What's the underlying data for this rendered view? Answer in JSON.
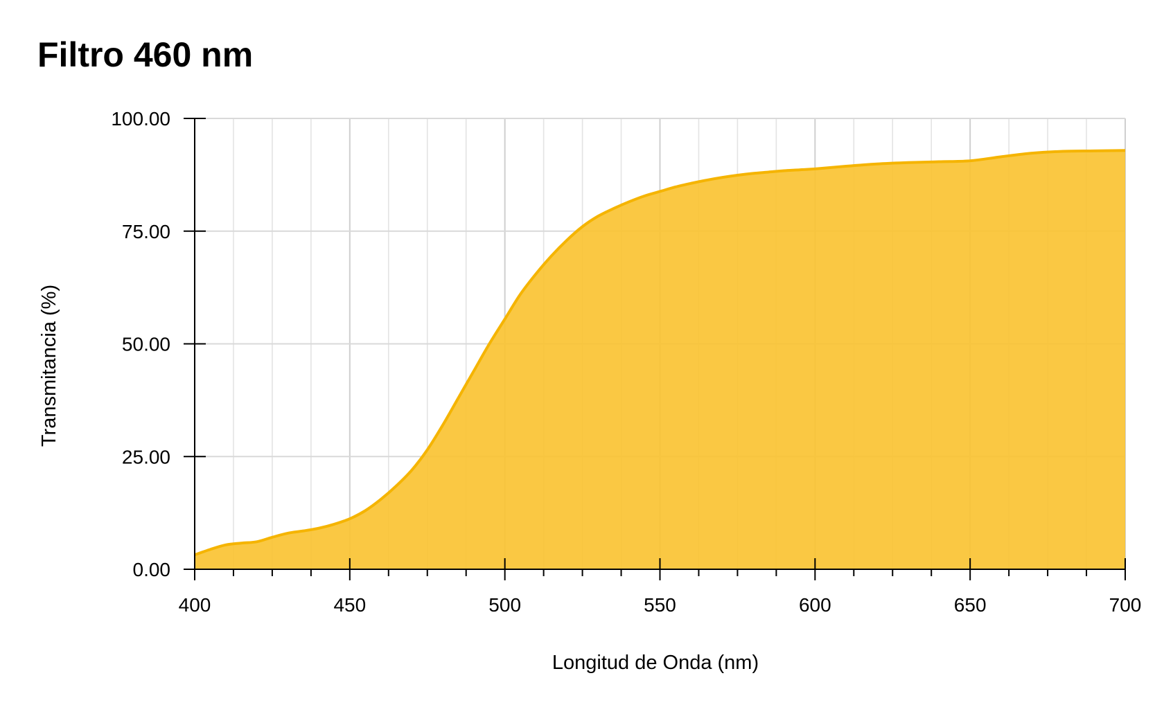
{
  "chart_data": {
    "type": "area",
    "title": "Filtro 460 nm",
    "xlabel": "Longitud de Onda (nm)",
    "ylabel": "Transmitancia (%)",
    "xlim": [
      400,
      700
    ],
    "ylim": [
      0,
      100
    ],
    "x_ticks": [
      400,
      450,
      500,
      550,
      600,
      650,
      700
    ],
    "x_tick_labels": [
      "400",
      "450",
      "500",
      "550",
      "600",
      "650",
      "700"
    ],
    "x_minor_step": 12.5,
    "y_ticks": [
      0,
      25,
      50,
      75,
      100
    ],
    "y_tick_labels": [
      "0.00",
      "25.00",
      "50.00",
      "75.00",
      "100.00"
    ],
    "grid": true,
    "legend": "none",
    "colors": {
      "line": "#F5B400",
      "fill": "#FAC22F",
      "grid": "#D9D9D9",
      "axis": "#000000"
    },
    "series": [
      {
        "x": [
          400,
          405,
          410,
          415,
          420,
          425,
          430,
          435,
          440,
          445,
          450,
          455,
          460,
          465,
          470,
          475,
          480,
          485,
          490,
          495,
          500,
          505,
          510,
          515,
          520,
          525,
          530,
          535,
          540,
          545,
          550,
          555,
          560,
          565,
          570,
          575,
          580,
          585,
          590,
          595,
          600,
          610,
          620,
          630,
          640,
          650,
          660,
          670,
          680,
          690,
          700
        ],
        "y": [
          3.2,
          4.4,
          5.4,
          5.8,
          6.1,
          7.1,
          8.0,
          8.5,
          9.1,
          10.0,
          11.2,
          13.0,
          15.5,
          18.5,
          22.0,
          26.5,
          32.0,
          38.0,
          44.0,
          50.0,
          55.5,
          61.0,
          65.5,
          69.5,
          73.0,
          76.0,
          78.3,
          80.0,
          81.5,
          82.8,
          83.8,
          84.8,
          85.6,
          86.3,
          86.9,
          87.4,
          87.8,
          88.1,
          88.4,
          88.6,
          88.8,
          89.4,
          89.9,
          90.2,
          90.4,
          90.6,
          91.5,
          92.3,
          92.7,
          92.8,
          92.9
        ]
      }
    ]
  }
}
